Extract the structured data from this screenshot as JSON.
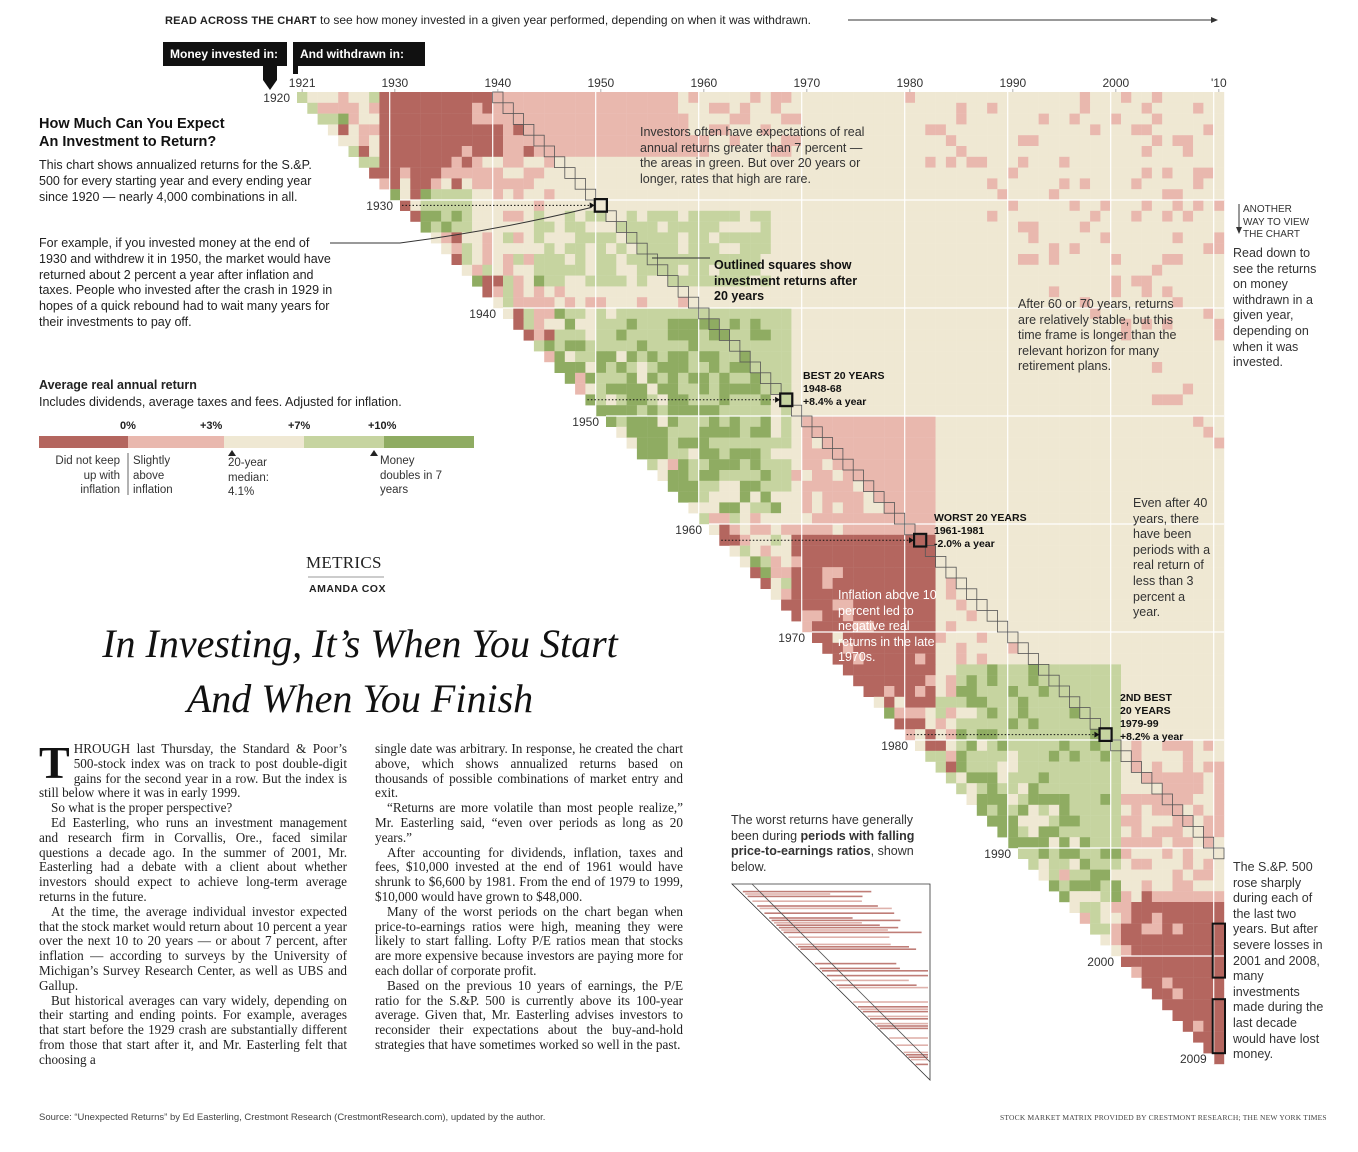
{
  "header": {
    "read_bold": "READ ACROSS THE CHART",
    "read_text": "to see how money invested in a given year performed, depending on when it was withdrawn.",
    "tag_invested": "Money invested in:",
    "tag_withdrawn": "And withdrawn in:"
  },
  "intro": {
    "title_line1": "How Much Can You Expect",
    "title_line2": "An Investment to Return?",
    "body": "This chart shows annualized returns for the S.&P. 500 for every starting year and every ending year since 1920 — nearly 4,000 combinations in all.",
    "example": "For example, if you invested money at the end of 1930 and withdrew it in 1950, the market would have returned about 2 percent a year after inflation and taxes. People who invested after the crash in 1929 in hopes of a quick rebound had to wait many years for their investments to pay off."
  },
  "legend": {
    "title": "Average real annual return",
    "subtitle": "Includes dividends, average taxes and fees. Adjusted for inflation.",
    "ticks": [
      "0%",
      "+3%",
      "+7%",
      "+10%"
    ],
    "bins": [
      {
        "color": "#b4665f"
      },
      {
        "color": "#e9b8ae"
      },
      {
        "color": "#efe8d3"
      },
      {
        "color": "#c6d4a0"
      },
      {
        "color": "#8fac62"
      }
    ],
    "desc_1": "Did not keep up with inflation",
    "desc_2": "Slightly above inflation",
    "desc_3": "20-year median: 4.1%",
    "desc_4": "Money doubles in 7 years"
  },
  "metrics": {
    "section": "METRICS",
    "byline": "AMANDA COX"
  },
  "headline": {
    "line1": "In Investing, It’s When You Start",
    "line2": "And When You Finish"
  },
  "article": {
    "dropcap": "T",
    "col1": [
      "HROUGH last Thursday, the Standard & Poor’s 500-stock index was on track to post double-digit gains for the second year in a row. But the index is still below where it was in early 1999.",
      "So what is the proper perspective?",
      "Ed Easterling, who runs an investment management and research firm in Corvallis, Ore., faced similar questions a decade ago. In the summer of 2001, Mr. Easterling had a debate with a client about whether investors should expect to achieve long-term average returns in the future.",
      "At the time, the average individual investor expected that the stock market would return about 10 percent a year over the next 10 to 20 years — or about 7 percent, after inflation — according to surveys by the University of Michigan’s Survey Research Center, as well as UBS and Gallup.",
      "But historical averages can vary widely, depending on their starting and ending points. For example, averages that start before the 1929 crash are substantially different from those that start after it, and Mr. Easterling felt that choosing a"
    ],
    "col2": [
      "single date was arbitrary. In response, he created the chart above, which shows annualized returns based on thousands of possible combinations of market entry and exit.",
      "“Returns are more volatile than most people realize,” Mr. Easterling said, “even over periods as long as 20 years.”",
      "After accounting for dividends, inflation, taxes and fees, $10,000 invested at the end of 1961 would have shrunk to $6,600 by 1981. From the end of 1979 to 1999, $10,000 would have grown to $48,000.",
      "Many of the worst periods on the chart began when price-to-earnings ratios were high, meaning they were likely to start falling. Lofty P/E ratios mean that stocks are more expensive because investors are paying more for each dollar of corporate profit.",
      "Based on the previous 10 years of earnings, the P/E ratio for the S.&P. 500 is currently above its 100-year average. Given that, Mr. Easterling advises investors to reconsider their expectations about the buy-and-hold strategies that have sometimes worked so well in the past."
    ]
  },
  "annotations": {
    "expectations": "Investors often have expectations of real annual returns greater than 7 percent — the areas in green. But over 20 years or longer, rates that high are rare.",
    "outlined": "Outlined squares show investment returns after 20 years",
    "after60": "After 60 or 70 years, returns are relatively stable, but this time frame is longer than the relevant horizon for many retirement plans.",
    "another_way": "ANOTHER WAY TO VIEW THE CHART",
    "read_down": "Read down to see the returns on money withdrawn in a given year, depending on when it was invested.",
    "even_after": "Even after 40 years, there have been periods with a real return of less than 3 percent a year.",
    "inflation": "Inflation above 10 percent led to negative real returns in the late 1970s.",
    "best_title": "BEST 20 YEARS",
    "best_years": "1948-68",
    "best_value": "+8.4% a year",
    "worst_title": "WORST 20 YEARS",
    "worst_years": "1961-1981",
    "worst_value": "-2.0% a year",
    "second_title": "2ND BEST",
    "second_title2": "20 YEARS",
    "second_years": "1979-99",
    "second_value": "+8.2% a year",
    "pe_note_1": "The worst returns have generally been during",
    "pe_note_bold": "periods with falling price-to-earnings ratios",
    "pe_note_2": ", shown below.",
    "sp_note": "The S.&P. 500 rose sharply during each of the last two years. But after severe losses in 2001 and 2008, many investments made during the last decade would have lost money."
  },
  "source": "Source: “Unexpected Returns” by Ed Easterling, Crestmont Research (CrestmontResearch.com), updated by the author.",
  "credit": "STOCK MARKET MATRIX PROVIDED BY CRESTMONT RESEARCH; THE NEW YORK TIMES",
  "chart_data": {
    "type": "heatmap",
    "title": "How Much Can You Expect An Investment to Return?",
    "x_axis_label": "And withdrawn in:",
    "y_axis_label": "Money invested in:",
    "x_ticks": [
      "1921",
      "1930",
      "1940",
      "1950",
      "1960",
      "1970",
      "1980",
      "1990",
      "2000",
      "'10"
    ],
    "y_ticks": [
      "1920",
      "1930",
      "1940",
      "1950",
      "1960",
      "1970",
      "1980",
      "1990",
      "2000",
      "2009"
    ],
    "start_years": [
      1920,
      2009
    ],
    "end_years": [
      1921,
      2010
    ],
    "bin_edges_pct": [
      0,
      3,
      7,
      10
    ],
    "highlights": [
      {
        "label": "1930-1950",
        "start": 1930,
        "end": 1950,
        "value_pct": 2.0
      },
      {
        "label": "BEST 20 YEARS",
        "start": 1948,
        "end": 1968,
        "value_pct": 8.4
      },
      {
        "label": "WORST 20 YEARS",
        "start": 1961,
        "end": 1981,
        "value_pct": -2.0
      },
      {
        "label": "2ND BEST 20 YEARS",
        "start": 1979,
        "end": 1999,
        "value_pct": 8.2
      }
    ],
    "median_20yr_pct": 4.1
  }
}
